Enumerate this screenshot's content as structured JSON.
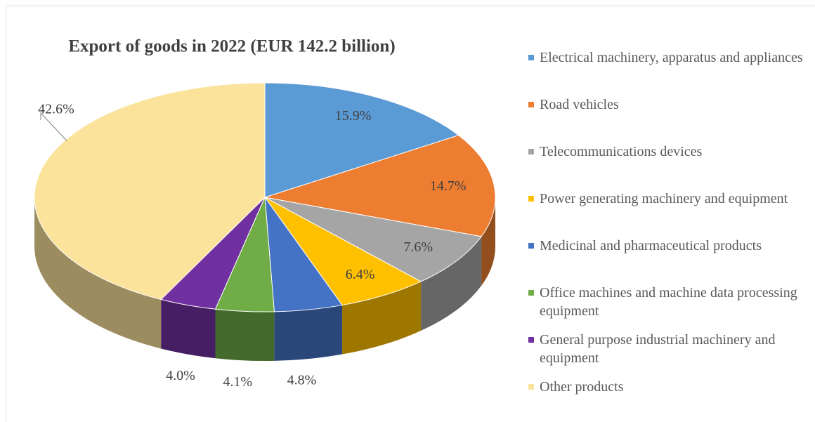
{
  "chart_data": {
    "type": "pie3d",
    "title": "Export of goods in 2022 (EUR 142.2 billion)",
    "categories": [
      "Electrical machinery, apparatus and appliances",
      "Road vehicles",
      "Telecommunications devices",
      "Power generating machinery and equipment",
      "Medicinal and pharmaceutical products",
      "Office machines and machine data processing equipment",
      "General purpose industrial machinery and equipment",
      "Other products"
    ],
    "values": [
      15.9,
      14.7,
      7.6,
      6.4,
      4.8,
      4.1,
      4.0,
      42.6
    ],
    "value_labels": [
      "15.9%",
      "14.7%",
      "7.6%",
      "6.4%",
      "4.8%",
      "4.1%",
      "4.0%",
      "42.6%"
    ],
    "colors": [
      "#5b9bd5",
      "#ed7d31",
      "#a5a5a5",
      "#ffc000",
      "#4472c4",
      "#70ad47",
      "#7030a0",
      "#fbe39b"
    ],
    "legend": "right"
  }
}
